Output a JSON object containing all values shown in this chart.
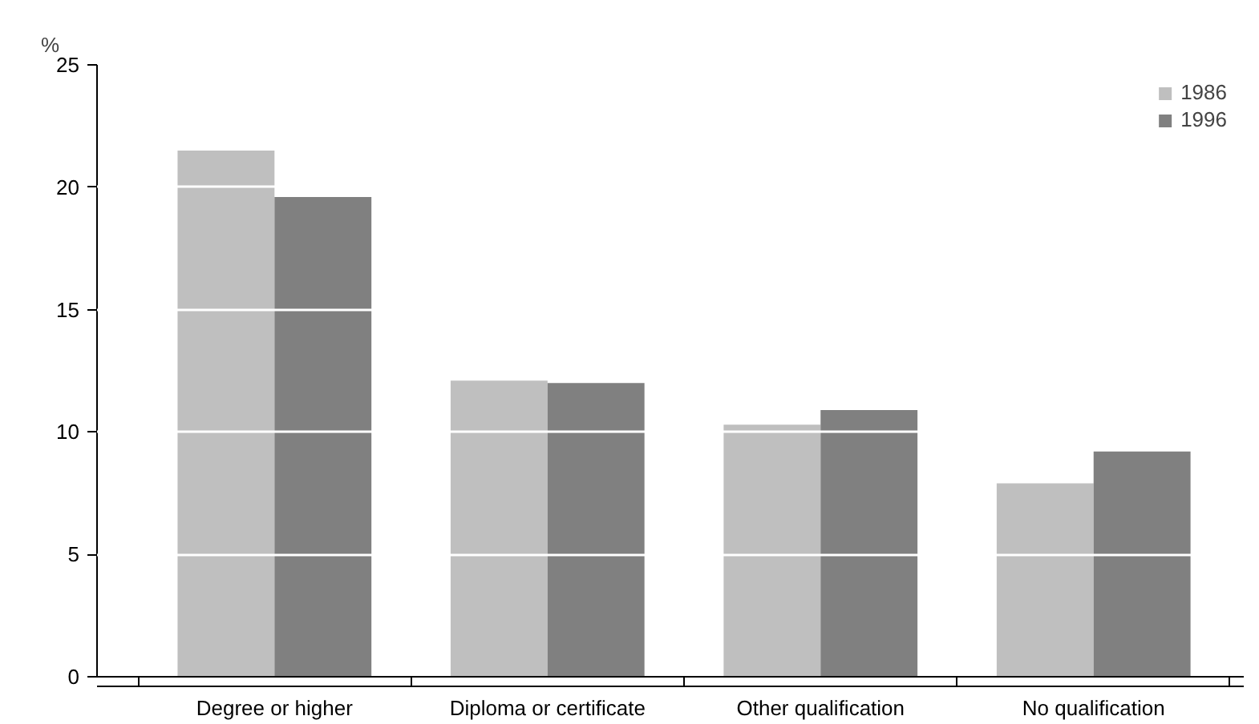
{
  "chart_data": {
    "type": "bar",
    "ylabel": "%",
    "categories": [
      "Degree or higher",
      "Diploma or certificate",
      "Other qualification",
      "No qualification"
    ],
    "series": [
      {
        "name": "1986",
        "color": "#bfbfbf",
        "values": [
          21.5,
          12.1,
          10.3,
          7.9
        ]
      },
      {
        "name": "1996",
        "color": "#808080",
        "values": [
          19.6,
          12.0,
          10.9,
          9.2
        ]
      }
    ],
    "ylim": [
      0,
      25
    ],
    "yticks": [
      0,
      5,
      10,
      15,
      20,
      25
    ],
    "grid": "y",
    "legend": "top right"
  }
}
